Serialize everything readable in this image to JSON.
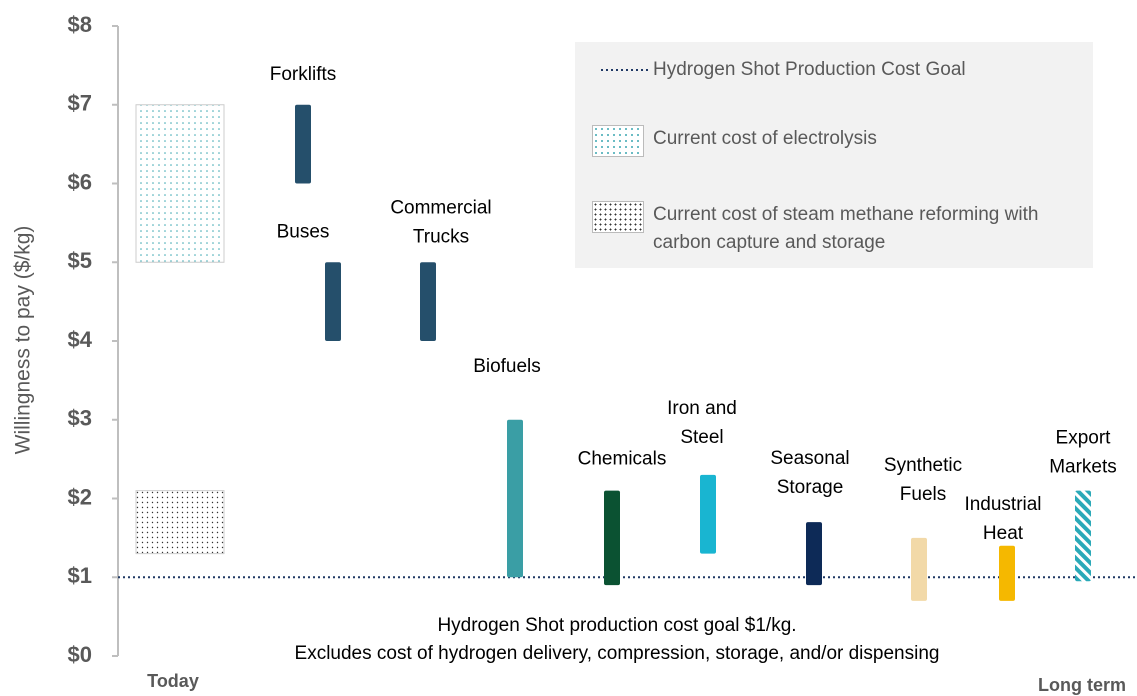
{
  "chart_data": {
    "type": "range_bar",
    "y_label": "Willingness to pay ($/kg)",
    "ylim": [
      0,
      8
    ],
    "yticks": [
      {
        "value": 0,
        "label": "$0"
      },
      {
        "value": 1,
        "label": "$1"
      },
      {
        "value": 2,
        "label": "$2"
      },
      {
        "value": 3,
        "label": "$3"
      },
      {
        "value": 4,
        "label": "$4"
      },
      {
        "value": 5,
        "label": "$5"
      },
      {
        "value": 6,
        "label": "$6"
      },
      {
        "value": 7,
        "label": "$7"
      },
      {
        "value": 8,
        "label": "$8"
      }
    ],
    "x_labels": [
      "Today",
      "Long term"
    ],
    "categories": [
      "Forklifts",
      "Buses",
      "Commercial Trucks",
      "Biofuels",
      "Chemicals",
      "Iron and Steel",
      "Seasonal Storage",
      "Synthetic Fuels",
      "Industrial Heat",
      "Export Markets"
    ],
    "low": [
      6,
      4,
      4,
      1,
      0.9,
      1.3,
      0.9,
      0.7,
      0.7,
      0.95
    ],
    "high": [
      7,
      5,
      5,
      3,
      2.1,
      2.3,
      1.7,
      1.5,
      1.4,
      2.1
    ],
    "colors": [
      "#254f6b",
      "#254f6b",
      "#254f6b",
      "#3a9ea5",
      "#0b5232",
      "#19b5d1",
      "#0d2a57",
      "#f2d9a8",
      "#f5b800",
      "#2aa9b8"
    ],
    "bands": [
      {
        "name": "Current cost of electrolysis",
        "low": 5,
        "high": 7,
        "color": "#3aa6b0"
      },
      {
        "name": "Current cost of steam methane reforming with carbon capture and storage",
        "low": 1.3,
        "high": 2.1,
        "color": "#333333"
      }
    ],
    "goal": {
      "name": "Hydrogen Shot Production Cost Goal",
      "value": 1,
      "color": "#1f3864"
    },
    "annotation": [
      "Hydrogen Shot production cost goal $1/kg.",
      "Excludes cost of hydrogen delivery, compression, storage, and/or dispensing"
    ]
  }
}
